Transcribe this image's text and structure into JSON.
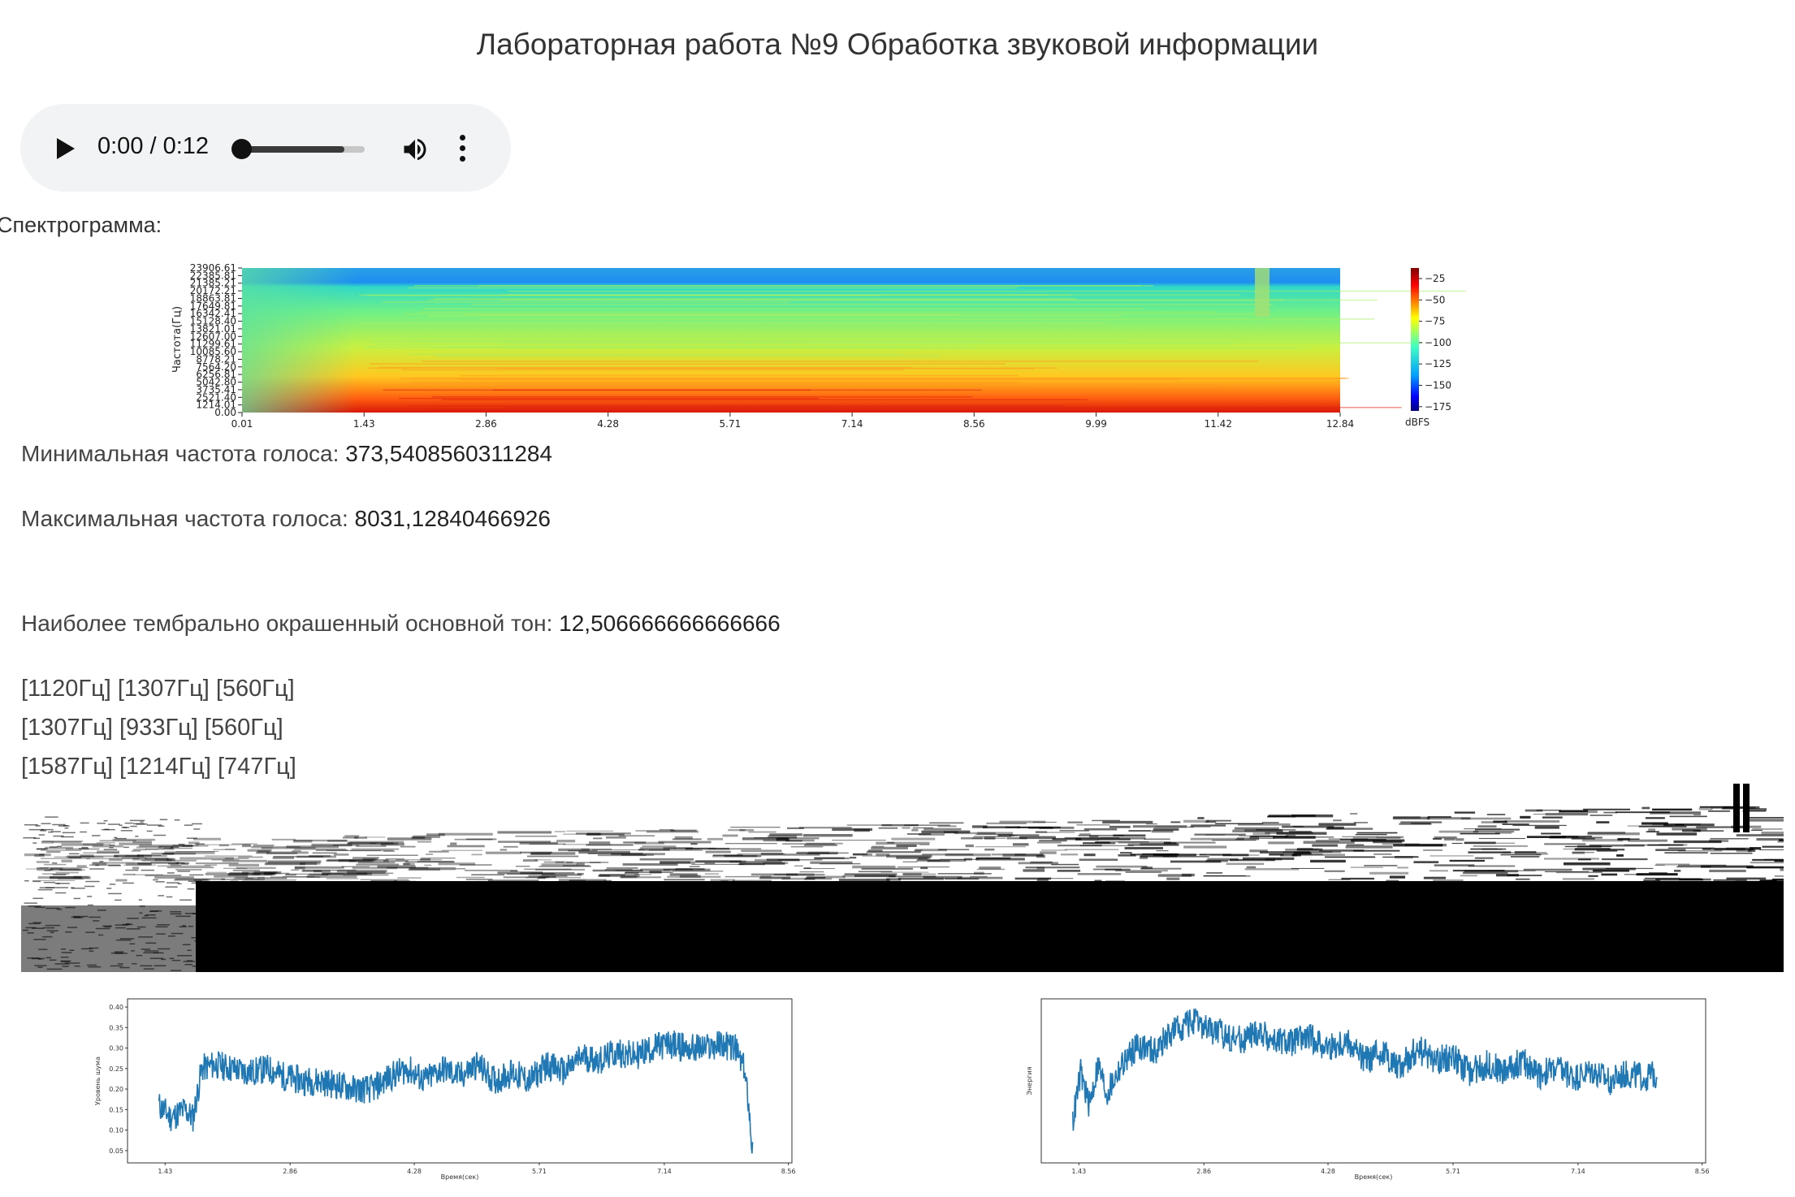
{
  "page": {
    "title": "Лабораторная работа №9 Обработка звуковой информации"
  },
  "player": {
    "time": "0:00 / 0:12",
    "progress": 0.0,
    "icons": [
      "play-icon",
      "volume-icon",
      "more-vert-icon"
    ]
  },
  "spectrogram": {
    "label": "Спектрограмма:",
    "ylabel": "Частота(Гц)",
    "y_ticks": [
      "23906.61",
      "22385.81",
      "21385.21",
      "20172.21",
      "18863.81",
      "17649.81",
      "16342.41",
      "15128.40",
      "13821.01",
      "12607.00",
      "11299.61",
      "10085.60",
      "8778.21",
      "7564.20",
      "6256.81",
      "5042.80",
      "3735.41",
      "2521.40",
      "1214.01",
      "0.00"
    ],
    "x_ticks": [
      "0.01",
      "1.43",
      "2.86",
      "4.28",
      "5.71",
      "7.14",
      "8.56",
      "9.99",
      "11.42",
      "12.84"
    ],
    "colorbar_ticks": [
      "−25",
      "−50",
      "−75",
      "−100",
      "−125",
      "−150",
      "−175"
    ],
    "colorbar_label": "dBFS"
  },
  "info": {
    "min_label": "Минимальная частота голоса: ",
    "min_value": "373,5408560311284",
    "max_label": "Максимальная частота голоса: ",
    "max_value": "8031,12840466926",
    "tone_label": "Наиболее тембрально окрашенный основной тон: ",
    "tone_value": "12,506666666666666"
  },
  "tones": [
    "[1120Гц] [1307Гц] [560Гц]",
    "[1307Гц] [933Гц] [560Гц]",
    "[1587Гц] [1214Гц] [747Гц]"
  ],
  "chart_data": [
    {
      "type": "line",
      "xlabel": "Время(сек)",
      "ylabel": "Уровень шума",
      "x_ticks": [
        "1.43",
        "2.86",
        "4.28",
        "5.71",
        "7.14",
        "8.56"
      ],
      "y_ticks": [
        "0.05",
        "0.10",
        "0.15",
        "0.20",
        "0.25",
        "0.30",
        "0.35",
        "0.40"
      ],
      "xlim": [
        1.0,
        8.6
      ],
      "ylim": [
        0.02,
        0.42
      ],
      "color": "#1f77b4",
      "x": [
        1.36,
        1.5,
        1.65,
        1.75,
        1.85,
        2.0,
        2.2,
        2.4,
        2.6,
        2.8,
        3.0,
        3.2,
        3.4,
        3.6,
        3.8,
        4.0,
        4.2,
        4.4,
        4.6,
        4.8,
        5.0,
        5.2,
        5.4,
        5.6,
        5.8,
        6.0,
        6.2,
        6.4,
        6.6,
        6.8,
        7.0,
        7.2,
        7.4,
        7.6,
        7.8,
        7.95,
        8.05,
        8.1,
        8.15
      ],
      "y": [
        0.16,
        0.13,
        0.15,
        0.13,
        0.25,
        0.26,
        0.25,
        0.24,
        0.25,
        0.23,
        0.22,
        0.22,
        0.21,
        0.2,
        0.2,
        0.23,
        0.25,
        0.22,
        0.25,
        0.23,
        0.26,
        0.22,
        0.24,
        0.22,
        0.26,
        0.24,
        0.28,
        0.27,
        0.29,
        0.28,
        0.3,
        0.31,
        0.3,
        0.3,
        0.31,
        0.3,
        0.25,
        0.18,
        0.05
      ]
    },
    {
      "type": "line",
      "xlabel": "Время(сек)",
      "ylabel": "Энергия",
      "x_ticks": [
        "1.43",
        "2.86",
        "4.28",
        "5.71",
        "7.14",
        "8.56"
      ],
      "y_ticks": [],
      "xlim": [
        1.0,
        8.6
      ],
      "ylim": [
        0.0,
        1.0
      ],
      "color": "#1f77b4",
      "x": [
        1.36,
        1.45,
        1.55,
        1.65,
        1.75,
        1.9,
        2.1,
        2.3,
        2.5,
        2.7,
        2.9,
        3.1,
        3.3,
        3.5,
        3.7,
        3.9,
        4.1,
        4.3,
        4.5,
        4.7,
        4.9,
        5.1,
        5.3,
        5.5,
        5.7,
        5.9,
        6.1,
        6.3,
        6.5,
        6.7,
        6.9,
        7.1,
        7.3,
        7.5,
        7.7,
        7.9,
        8.05
      ],
      "y": [
        0.25,
        0.55,
        0.35,
        0.6,
        0.42,
        0.58,
        0.72,
        0.68,
        0.8,
        0.86,
        0.82,
        0.78,
        0.75,
        0.8,
        0.73,
        0.74,
        0.76,
        0.7,
        0.74,
        0.62,
        0.68,
        0.58,
        0.7,
        0.62,
        0.65,
        0.55,
        0.6,
        0.56,
        0.62,
        0.54,
        0.58,
        0.52,
        0.56,
        0.5,
        0.54,
        0.52,
        0.55
      ]
    }
  ]
}
